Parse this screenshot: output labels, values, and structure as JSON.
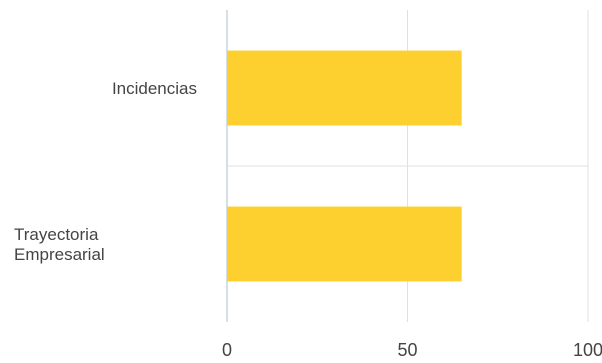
{
  "chart_data": {
    "type": "bar",
    "orientation": "horizontal",
    "categories": [
      [
        "Incidencias"
      ],
      [
        "Trayectoria",
        "Empresarial"
      ]
    ],
    "values": [
      65,
      65
    ],
    "xlim": [
      0,
      100
    ],
    "xticks": [
      "0",
      "50",
      "100"
    ],
    "grid": true,
    "legend": "none",
    "bar_color": "#fdd02f",
    "title": "",
    "xlabel": "",
    "ylabel": ""
  }
}
